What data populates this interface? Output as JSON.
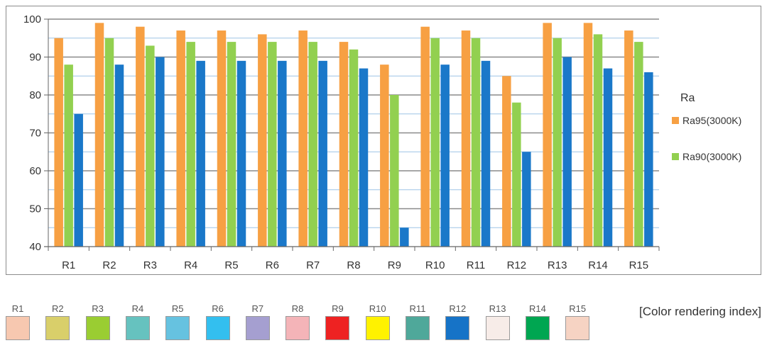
{
  "chart_data": {
    "type": "bar",
    "categories": [
      "R1",
      "R2",
      "R3",
      "R4",
      "R5",
      "R6",
      "R7",
      "R8",
      "R9",
      "R10",
      "R11",
      "R12",
      "R13",
      "R14",
      "R15"
    ],
    "series": [
      {
        "name": "Ra95(3000K)",
        "color": "#f7a043",
        "values": [
          95,
          99,
          98,
          97,
          97,
          96,
          97,
          94,
          88,
          98,
          97,
          85,
          99,
          99,
          97
        ]
      },
      {
        "name": "Ra90(3000K)",
        "color": "#92d050",
        "values": [
          88,
          95,
          93,
          94,
          94,
          94,
          94,
          92,
          80,
          95,
          95,
          78,
          95,
          96,
          94
        ]
      },
      {
        "name": "",
        "color": "#1a78c9",
        "values": [
          75,
          88,
          90,
          89,
          89,
          89,
          89,
          87,
          45,
          88,
          89,
          65,
          90,
          87,
          86
        ]
      }
    ],
    "yticks": [
      40,
      50,
      60,
      70,
      80,
      90,
      100
    ],
    "ylim": [
      40,
      100
    ],
    "grid": true,
    "legend_title": "Ra",
    "legend_position": "right"
  },
  "cri": {
    "caption": "[Color rendering index]",
    "items": [
      {
        "label": "R1",
        "color": "#f7c8b0"
      },
      {
        "label": "R2",
        "color": "#d9cf6a"
      },
      {
        "label": "R3",
        "color": "#9acd32"
      },
      {
        "label": "R4",
        "color": "#66c2bf"
      },
      {
        "label": "R5",
        "color": "#66c2e0"
      },
      {
        "label": "R6",
        "color": "#33bfef"
      },
      {
        "label": "R7",
        "color": "#a59fd0"
      },
      {
        "label": "R8",
        "color": "#f4b4b8"
      },
      {
        "label": "R9",
        "color": "#ee2222"
      },
      {
        "label": "R10",
        "color": "#fff200"
      },
      {
        "label": "R11",
        "color": "#4fa89a"
      },
      {
        "label": "R12",
        "color": "#1673c7"
      },
      {
        "label": "R13",
        "color": "#f7ece8"
      },
      {
        "label": "R14",
        "color": "#00a651"
      },
      {
        "label": "R15",
        "color": "#f6d3c3"
      }
    ]
  }
}
